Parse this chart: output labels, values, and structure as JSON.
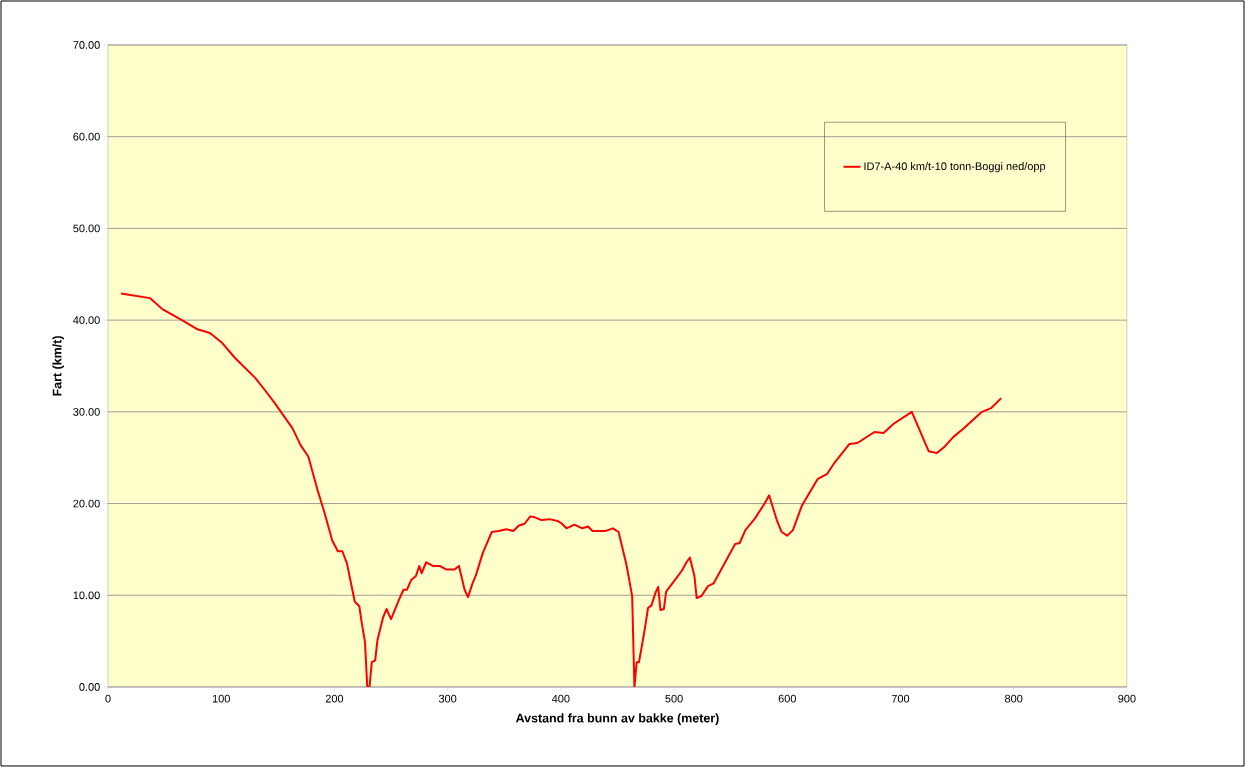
{
  "chart_data": {
    "type": "line",
    "xlabel": "Avstand fra bunn av bakke (meter)",
    "ylabel": "Fart (km/t)",
    "xlim": [
      0,
      900
    ],
    "xticks": [
      0,
      100,
      200,
      300,
      400,
      500,
      600,
      700,
      800,
      900
    ],
    "ylim": [
      0,
      70
    ],
    "yticks": [
      {
        "value": 0,
        "label": "0.00"
      },
      {
        "value": 10,
        "label": "10.00"
      },
      {
        "value": 20,
        "label": "20.00"
      },
      {
        "value": 30,
        "label": "30.00"
      },
      {
        "value": 40,
        "label": "40.00"
      },
      {
        "value": 50,
        "label": "50.00"
      },
      {
        "value": 60,
        "label": "60.00"
      },
      {
        "value": 70,
        "label": "70.00"
      }
    ],
    "grid": "y",
    "legend": "top right",
    "marker": "none",
    "line_style": "solid",
    "series": [
      {
        "name": "ID7-A-40 km/t-10 tonn-Boggi ned/opp",
        "color": "#ff0000",
        "x": [
          11.5,
          37,
          48,
          68,
          79,
          90,
          101,
          112,
          130,
          139,
          147,
          163,
          170,
          177,
          185,
          191,
          198,
          203,
          207,
          211,
          214,
          218,
          222,
          224,
          227,
          229,
          231,
          233,
          236,
          238,
          243,
          246,
          250,
          257,
          261,
          264,
          268,
          272,
          275,
          277,
          281,
          287,
          293,
          299,
          306,
          310,
          315,
          318,
          322,
          325,
          331,
          339,
          345,
          352,
          358,
          363,
          368,
          373,
          377,
          383,
          390,
          397,
          400,
          405,
          412,
          419,
          424,
          428,
          439,
          446,
          451,
          458,
          463,
          465,
          467,
          469,
          474,
          477,
          480,
          484,
          486,
          488,
          491,
          493,
          501,
          507,
          511,
          514,
          518,
          520,
          524,
          530,
          535,
          546,
          554,
          558,
          563,
          571,
          580,
          584,
          591,
          595,
          600,
          605,
          613,
          627,
          635,
          642,
          655,
          662,
          677,
          685,
          694,
          710,
          725,
          732,
          739,
          747,
          755,
          772,
          780,
          789
        ],
        "values": [
          42.9,
          42.4,
          41.2,
          39.8,
          39.0,
          38.6,
          37.5,
          35.9,
          33.7,
          32.3,
          31.0,
          28.2,
          26.4,
          25.1,
          21.5,
          19.1,
          16.0,
          14.8,
          14.8,
          13.5,
          11.7,
          9.3,
          8.8,
          7.1,
          4.9,
          0,
          0,
          2.7,
          2.9,
          5.1,
          7.6,
          8.5,
          7.4,
          9.5,
          10.6,
          10.6,
          11.7,
          12.1,
          13.2,
          12.4,
          13.6,
          13.2,
          13.2,
          12.8,
          12.8,
          13.2,
          10.6,
          9.8,
          11.3,
          12.2,
          14.6,
          16.9,
          17.0,
          17.2,
          17.0,
          17.6,
          17.8,
          18.6,
          18.5,
          18.2,
          18.3,
          18.1,
          17.9,
          17.3,
          17.7,
          17.3,
          17.5,
          17.0,
          17.0,
          17.3,
          16.9,
          13.3,
          9.9,
          0,
          2.7,
          2.7,
          6.2,
          8.6,
          8.9,
          10.4,
          10.9,
          8.4,
          8.5,
          10.4,
          11.7,
          12.7,
          13.6,
          14.1,
          12.1,
          9.7,
          9.9,
          11.0,
          11.3,
          13.8,
          15.6,
          15.7,
          17.1,
          18.3,
          20.0,
          20.9,
          18.1,
          16.9,
          16.5,
          17.1,
          19.8,
          22.7,
          23.2,
          24.5,
          26.5,
          26.6,
          27.8,
          27.7,
          28.7,
          30.0,
          25.7,
          25.5,
          26.2,
          27.3,
          28.1,
          30.0,
          30.4,
          31.5
        ]
      }
    ]
  }
}
